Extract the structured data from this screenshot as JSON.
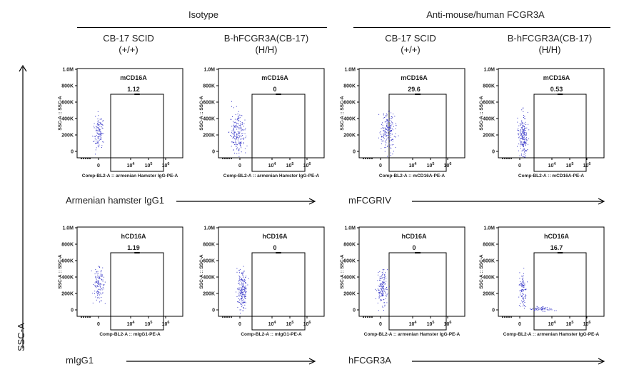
{
  "groups": [
    {
      "label": "Isotype"
    },
    {
      "label": "Anti-mouse/human FCGR3A"
    }
  ],
  "columns": [
    {
      "line1": "CB-17 SCID",
      "line2": "(+/+)"
    },
    {
      "line1": "B-hFCGR3A(CB-17)",
      "line2": "(H/H)"
    },
    {
      "line1": "CB-17 SCID",
      "line2": "(+/+)"
    },
    {
      "line1": "B-hFCGR3A(CB-17)",
      "line2": "(H/H)"
    }
  ],
  "row_labels": [
    {
      "label": "Armenian hamster IgG1"
    },
    {
      "label": "mFCGRIV"
    },
    {
      "label": "mIgG1"
    },
    {
      "label": "hFCGR3A"
    }
  ],
  "y_axis_label": "SSC-A",
  "colors": {
    "dots": "#3a3ac8",
    "text": "#222222"
  },
  "chart_data": [
    {
      "type": "scatter",
      "gate": "mCD16A",
      "value": "1.12",
      "xlabel": "Comp-BL2-A :: armenian Hamster IgG-PE-A",
      "ylabel": "SSC-A :: SSC-A",
      "yticks": [
        "1.0M",
        "800K",
        "600K",
        "400K",
        "200K",
        "0"
      ],
      "xticks": [
        "0",
        "10^4",
        "10^5",
        "10^6"
      ],
      "ylim": [
        0,
        1000000
      ]
    },
    {
      "type": "scatter",
      "gate": "mCD16A",
      "value": "0",
      "xlabel": "Comp-BL2-A :: armenian Hamster IgG-PE-A",
      "ylabel": "SSC-A :: SSC-A",
      "yticks": [
        "1.0M",
        "800K",
        "600K",
        "400K",
        "200K",
        "0"
      ],
      "xticks": [
        "0",
        "10^4",
        "10^5",
        "10^6"
      ],
      "ylim": [
        0,
        1000000
      ]
    },
    {
      "type": "scatter",
      "gate": "mCD16A",
      "value": "29.6",
      "xlabel": "Comp-BL2-A :: mCD16A-PE-A",
      "ylabel": "SSC-A :: SSC-A",
      "yticks": [
        "1.0M",
        "800K",
        "600K",
        "400K",
        "200K",
        "0"
      ],
      "xticks": [
        "0",
        "10^4",
        "10^5",
        "10^6"
      ],
      "ylim": [
        0,
        1000000
      ]
    },
    {
      "type": "scatter",
      "gate": "mCD16A",
      "value": "0.53",
      "xlabel": "Comp-BL2-A :: mCD16A-PE-A",
      "ylabel": "SSC-A :: SSC-A",
      "yticks": [
        "1.0M",
        "800K",
        "600K",
        "400K",
        "200K",
        "0"
      ],
      "xticks": [
        "0",
        "10^4",
        "10^5",
        "10^6"
      ],
      "ylim": [
        0,
        1000000
      ]
    },
    {
      "type": "scatter",
      "gate": "hCD16A",
      "value": "1.19",
      "xlabel": "Comp-BL2-A :: mIgG1-PE-A",
      "ylabel": "SSC-A :: SSC-A",
      "yticks": [
        "1.0M",
        "800K",
        "600K",
        "400K",
        "200K",
        "0"
      ],
      "xticks": [
        "0",
        "10^4",
        "10^5",
        "10^6"
      ],
      "ylim": [
        0,
        1000000
      ]
    },
    {
      "type": "scatter",
      "gate": "hCD16A",
      "value": "0",
      "xlabel": "Comp-BL2-A :: mIgG1-PE-A",
      "ylabel": "SSC-A :: SSC-A",
      "yticks": [
        "1.0M",
        "800K",
        "600K",
        "400K",
        "200K",
        "0"
      ],
      "xticks": [
        "0",
        "10^4",
        "10^5",
        "10^6"
      ],
      "ylim": [
        0,
        1000000
      ]
    },
    {
      "type": "scatter",
      "gate": "hCD16A",
      "value": "0",
      "xlabel": "Comp-BL2-A :: armenian Hamster IgG-PE-A",
      "ylabel": "SSC-A :: SSC-A",
      "yticks": [
        "1.0M",
        "800K",
        "600K",
        "400K",
        "200K",
        "0"
      ],
      "xticks": [
        "0",
        "10^4",
        "10^5",
        "10^6"
      ],
      "ylim": [
        0,
        1000000
      ]
    },
    {
      "type": "scatter",
      "gate": "hCD16A",
      "value": "16.7",
      "xlabel": "Comp-BL2-A :: armenian Hamster IgG-PE-A",
      "ylabel": "SSC-A :: SSC-A",
      "yticks": [
        "1.0M",
        "800K",
        "600K",
        "400K",
        "200K",
        "0"
      ],
      "xticks": [
        "0",
        "10^4",
        "10^5",
        "10^6"
      ],
      "ylim": [
        0,
        1000000
      ]
    }
  ]
}
